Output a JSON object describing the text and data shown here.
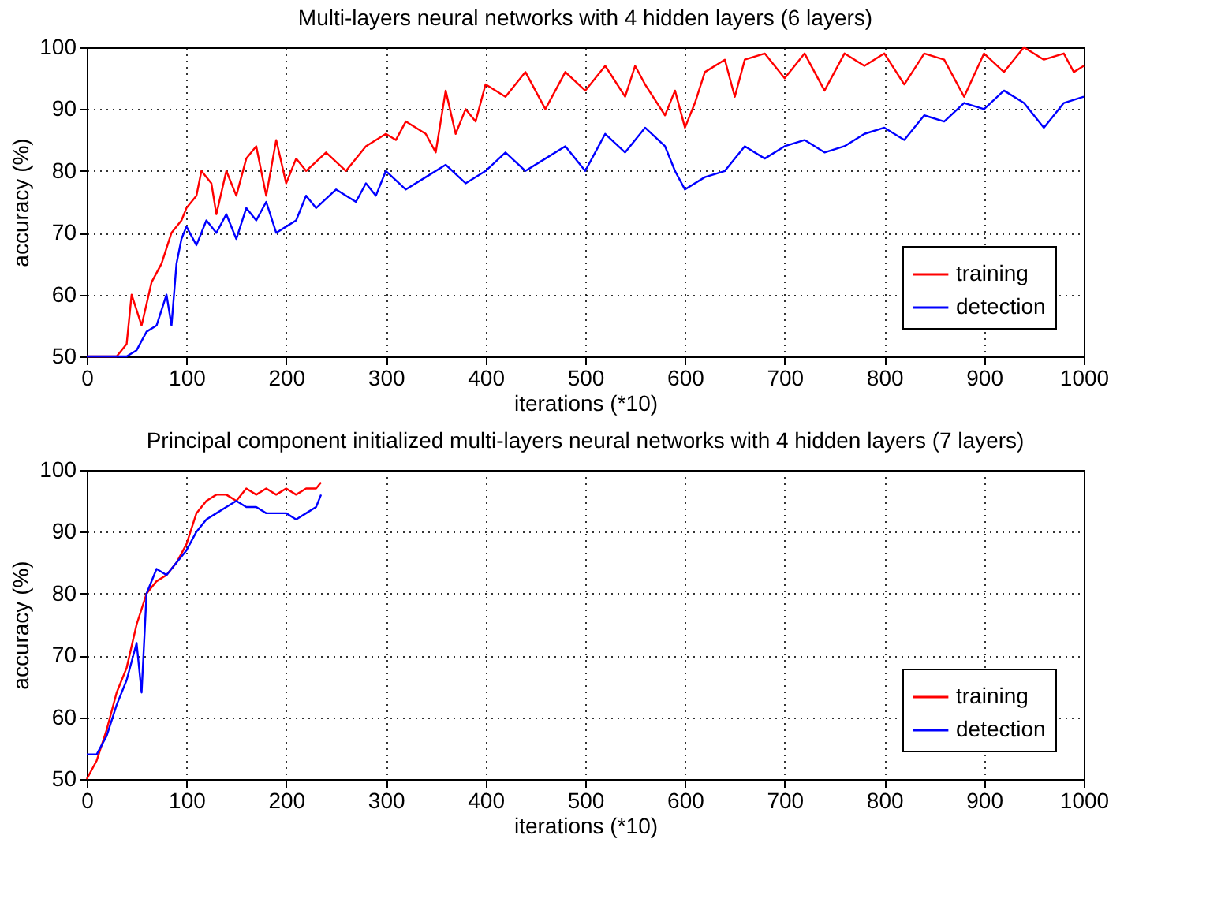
{
  "chart_data": [
    {
      "type": "line",
      "title": "Multi-layers neural networks with 4 hidden layers (6 layers)",
      "xlabel": "iterations (*10)",
      "ylabel": "accuracy (%)",
      "xlim": [
        0,
        1000
      ],
      "ylim": [
        50,
        100
      ],
      "xticks": [
        0,
        100,
        200,
        300,
        400,
        500,
        600,
        700,
        800,
        900,
        1000
      ],
      "yticks": [
        50,
        60,
        70,
        80,
        90,
        100
      ],
      "grid": true,
      "legend": "bottom right",
      "line_style": "solid",
      "series": [
        {
          "name": "training",
          "color": "#ff0000",
          "x": [
            0,
            30,
            40,
            45,
            55,
            65,
            75,
            85,
            95,
            100,
            110,
            115,
            125,
            130,
            140,
            150,
            160,
            170,
            180,
            190,
            200,
            210,
            220,
            240,
            260,
            280,
            300,
            310,
            320,
            340,
            350,
            360,
            370,
            380,
            390,
            400,
            420,
            440,
            460,
            480,
            500,
            520,
            540,
            550,
            560,
            580,
            590,
            600,
            610,
            620,
            640,
            650,
            660,
            680,
            700,
            720,
            740,
            760,
            780,
            800,
            820,
            840,
            860,
            880,
            900,
            920,
            940,
            960,
            980,
            990,
            1000
          ],
          "values": [
            50,
            50,
            52,
            60,
            55,
            62,
            65,
            70,
            72,
            74,
            76,
            80,
            78,
            73,
            80,
            76,
            82,
            84,
            76,
            85,
            78,
            82,
            80,
            83,
            80,
            84,
            86,
            85,
            88,
            86,
            83,
            93,
            86,
            90,
            88,
            94,
            92,
            96,
            90,
            96,
            93,
            97,
            92,
            97,
            94,
            89,
            93,
            87,
            91,
            96,
            98,
            92,
            98,
            99,
            95,
            99,
            93,
            99,
            97,
            99,
            94,
            99,
            98,
            92,
            99,
            96,
            100,
            98,
            99,
            96,
            97
          ]
        },
        {
          "name": "detection",
          "color": "#0000ff",
          "x": [
            0,
            40,
            50,
            60,
            70,
            80,
            85,
            90,
            95,
            100,
            110,
            120,
            130,
            140,
            150,
            160,
            170,
            180,
            190,
            200,
            210,
            220,
            230,
            250,
            270,
            280,
            290,
            300,
            320,
            340,
            360,
            380,
            400,
            420,
            440,
            460,
            480,
            500,
            520,
            540,
            560,
            580,
            590,
            600,
            620,
            640,
            660,
            680,
            700,
            720,
            740,
            760,
            780,
            800,
            820,
            840,
            860,
            880,
            900,
            920,
            940,
            960,
            980,
            1000
          ],
          "values": [
            50,
            50,
            51,
            54,
            55,
            60,
            55,
            65,
            69,
            71,
            68,
            72,
            70,
            73,
            69,
            74,
            72,
            75,
            70,
            71,
            72,
            76,
            74,
            77,
            75,
            78,
            76,
            80,
            77,
            79,
            81,
            78,
            80,
            83,
            80,
            82,
            84,
            80,
            86,
            83,
            87,
            84,
            80,
            77,
            79,
            80,
            84,
            82,
            84,
            85,
            83,
            84,
            86,
            87,
            85,
            89,
            88,
            91,
            90,
            93,
            91,
            87,
            91,
            92
          ]
        }
      ]
    },
    {
      "type": "line",
      "title": "Principal component initialized multi-layers neural networks with 4 hidden layers (7 layers)",
      "xlabel": "iterations (*10)",
      "ylabel": "accuracy (%)",
      "xlim": [
        0,
        1000
      ],
      "ylim": [
        50,
        100
      ],
      "xticks": [
        0,
        100,
        200,
        300,
        400,
        500,
        600,
        700,
        800,
        900,
        1000
      ],
      "yticks": [
        50,
        60,
        70,
        80,
        90,
        100
      ],
      "grid": true,
      "legend": "bottom right",
      "line_style": "solid",
      "series": [
        {
          "name": "training",
          "color": "#ff0000",
          "x": [
            0,
            10,
            20,
            30,
            40,
            50,
            60,
            70,
            80,
            90,
            100,
            110,
            120,
            130,
            140,
            150,
            160,
            170,
            180,
            190,
            200,
            210,
            220,
            230,
            235
          ],
          "values": [
            50,
            53,
            58,
            64,
            68,
            75,
            80,
            82,
            83,
            85,
            88,
            93,
            95,
            96,
            96,
            95,
            97,
            96,
            97,
            96,
            97,
            96,
            97,
            97,
            98
          ]
        },
        {
          "name": "detection",
          "color": "#0000ff",
          "x": [
            0,
            10,
            20,
            30,
            40,
            50,
            55,
            60,
            70,
            80,
            90,
            100,
            110,
            120,
            130,
            140,
            150,
            160,
            170,
            180,
            190,
            200,
            210,
            220,
            230,
            235
          ],
          "values": [
            54,
            54,
            57,
            62,
            66,
            72,
            64,
            80,
            84,
            83,
            85,
            87,
            90,
            92,
            93,
            94,
            95,
            94,
            94,
            93,
            93,
            93,
            92,
            93,
            94,
            96
          ]
        }
      ]
    }
  ]
}
